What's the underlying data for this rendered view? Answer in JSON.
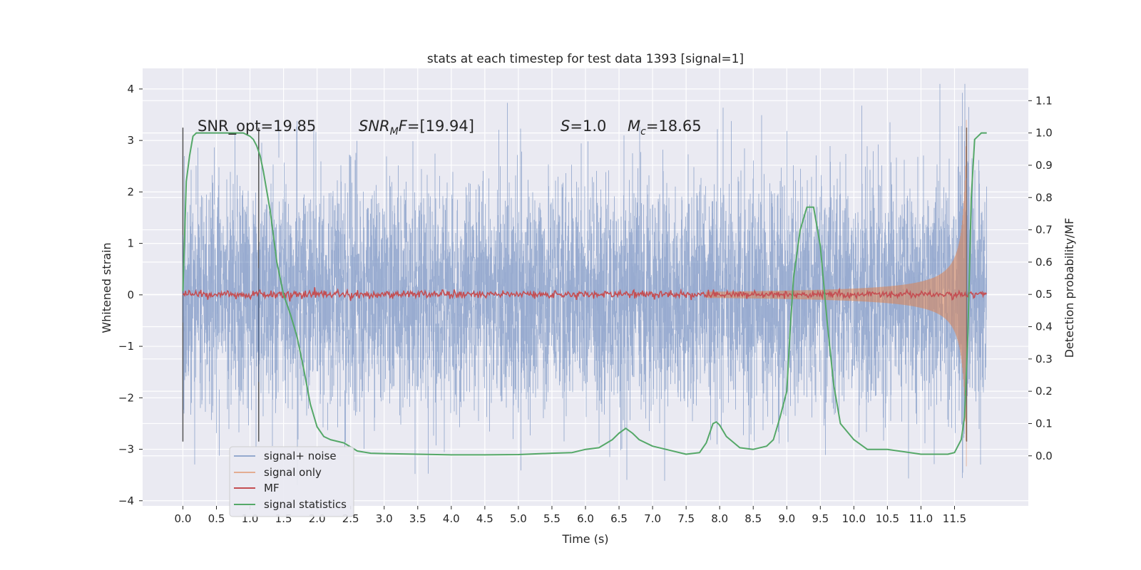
{
  "chart_data": {
    "type": "line",
    "title": "stats at each timestep for test data 1393 [signal=1]",
    "xlabel": "Time (s)",
    "ylabel": "Whitened strain",
    "ylabel_right": "Detection probability/MF",
    "xlim": [
      -0.6,
      12.6
    ],
    "ylim_left": [
      -4.1,
      4.4
    ],
    "ylim_right": [
      -0.155,
      1.2
    ],
    "x_ticks": [
      "0.0",
      "0.5",
      "1.0",
      "1.5",
      "2.0",
      "2.5",
      "3.0",
      "3.5",
      "4.0",
      "4.5",
      "5.0",
      "5.5",
      "6.0",
      "6.5",
      "7.0",
      "7.5",
      "8.0",
      "8.5",
      "9.0",
      "9.5",
      "10.0",
      "10.5",
      "11.0",
      "11.5"
    ],
    "y_ticks_left": [
      "−4",
      "−3",
      "−2",
      "−1",
      "0",
      "1",
      "2",
      "3",
      "4"
    ],
    "y_ticks_right": [
      "0.0",
      "0.1",
      "0.2",
      "0.3",
      "0.4",
      "0.5",
      "0.6",
      "0.7",
      "0.8",
      "0.9",
      "1.0",
      "1.1"
    ],
    "grid": true,
    "legend_position": "lower-left",
    "annotations": {
      "snr_opt": "SNR_opt=19.85",
      "snr_mf": "[19.94]",
      "s_value": "1.0",
      "mc_value": "18.65"
    },
    "window_markers_x": [
      0.0,
      1.13,
      11.68
    ],
    "series": [
      {
        "name": "signal+ noise",
        "axis": "left",
        "color": "#4c72b0",
        "x_range": [
          0.0,
          11.98
        ],
        "envelope": "noise std approx 1.0 whitened strain, peaks to about 4.1 near 11.65"
      },
      {
        "name": "signal only",
        "axis": "left",
        "color": "#dd8452",
        "x_range": [
          7.8,
          11.68
        ],
        "envelope": "chirp amplitude growing from 0.05 near 7.8 s to 3.4 near 11.65 s"
      },
      {
        "name": "MF",
        "axis": "right",
        "color": "#c44e52",
        "x_range": [
          0.0,
          11.98
        ],
        "envelope": "approx 0.49 to 0.51 detection probability/MF"
      },
      {
        "name": "signal statistics",
        "axis": "right",
        "color": "#55a868",
        "x": [
          0.0,
          0.05,
          0.1,
          0.15,
          0.2,
          0.3,
          0.5,
          0.7,
          0.9,
          1.0,
          1.05,
          1.1,
          1.15,
          1.2,
          1.3,
          1.4,
          1.5,
          1.6,
          1.7,
          1.8,
          1.9,
          2.0,
          2.1,
          2.2,
          2.4,
          2.6,
          2.8,
          3.0,
          3.5,
          4.0,
          4.5,
          5.0,
          5.5,
          5.8,
          6.0,
          6.2,
          6.4,
          6.5,
          6.6,
          6.7,
          6.8,
          7.0,
          7.2,
          7.5,
          7.7,
          7.8,
          7.9,
          7.95,
          8.0,
          8.1,
          8.3,
          8.5,
          8.7,
          8.8,
          8.9,
          9.0,
          9.05,
          9.1,
          9.2,
          9.3,
          9.4,
          9.5,
          9.6,
          9.7,
          9.8,
          10.0,
          10.2,
          10.5,
          11.0,
          11.4,
          11.5,
          11.6,
          11.65,
          11.7,
          11.75,
          11.8,
          11.85,
          11.9,
          11.98
        ],
        "y": [
          0.51,
          0.85,
          0.93,
          0.99,
          1.0,
          1.0,
          1.0,
          1.0,
          1.0,
          0.99,
          0.98,
          0.96,
          0.93,
          0.88,
          0.76,
          0.6,
          0.5,
          0.44,
          0.37,
          0.27,
          0.16,
          0.09,
          0.06,
          0.05,
          0.04,
          0.015,
          0.008,
          0.007,
          0.005,
          0.003,
          0.003,
          0.004,
          0.008,
          0.01,
          0.02,
          0.025,
          0.05,
          0.07,
          0.085,
          0.07,
          0.05,
          0.03,
          0.02,
          0.005,
          0.01,
          0.04,
          0.1,
          0.105,
          0.095,
          0.06,
          0.025,
          0.02,
          0.03,
          0.05,
          0.12,
          0.2,
          0.39,
          0.55,
          0.7,
          0.77,
          0.77,
          0.65,
          0.42,
          0.22,
          0.1,
          0.05,
          0.02,
          0.02,
          0.005,
          0.005,
          0.01,
          0.05,
          0.12,
          0.38,
          0.8,
          0.98,
          0.99,
          1.0,
          1.0
        ]
      }
    ]
  }
}
